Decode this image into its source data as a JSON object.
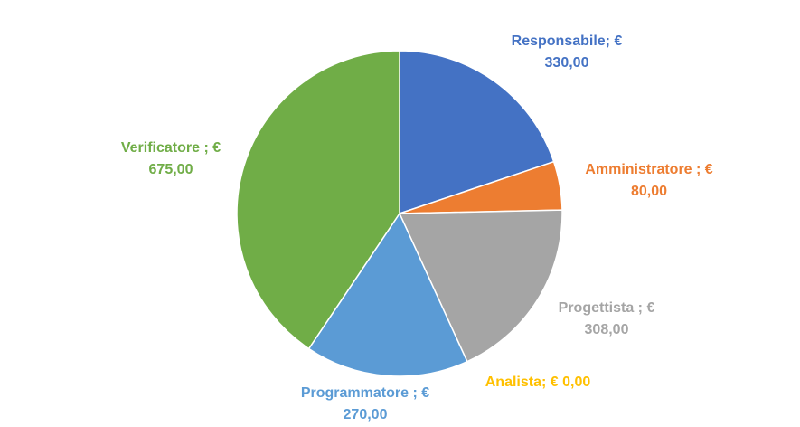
{
  "chart_data": {
    "type": "pie",
    "title": "",
    "start_angle_deg": 0,
    "direction": "clockwise",
    "slices": [
      {
        "name": "Responsabile",
        "value": 330,
        "label_line1": "Responsabile; €",
        "label_line2": "330,00",
        "color": "#4472c4"
      },
      {
        "name": "Amministratore",
        "value": 80,
        "label_line1": "Amministratore ; €",
        "label_line2": "80,00",
        "color": "#ed7d31"
      },
      {
        "name": "Progettista",
        "value": 308,
        "label_line1": "Progettista ; €",
        "label_line2": "308,00",
        "color": "#a5a5a5"
      },
      {
        "name": "Analista",
        "value": 0,
        "label_line1": "Analista; € 0,00",
        "label_line2": "",
        "color": "#ffc000"
      },
      {
        "name": "Programmatore",
        "value": 270,
        "label_line1": "Programmatore ; €",
        "label_line2": "270,00",
        "color": "#5b9bd5"
      },
      {
        "name": "Verificatore",
        "value": 675,
        "label_line1": "Verificatore ; €",
        "label_line2": "675,00",
        "color": "#70ad47"
      }
    ]
  }
}
